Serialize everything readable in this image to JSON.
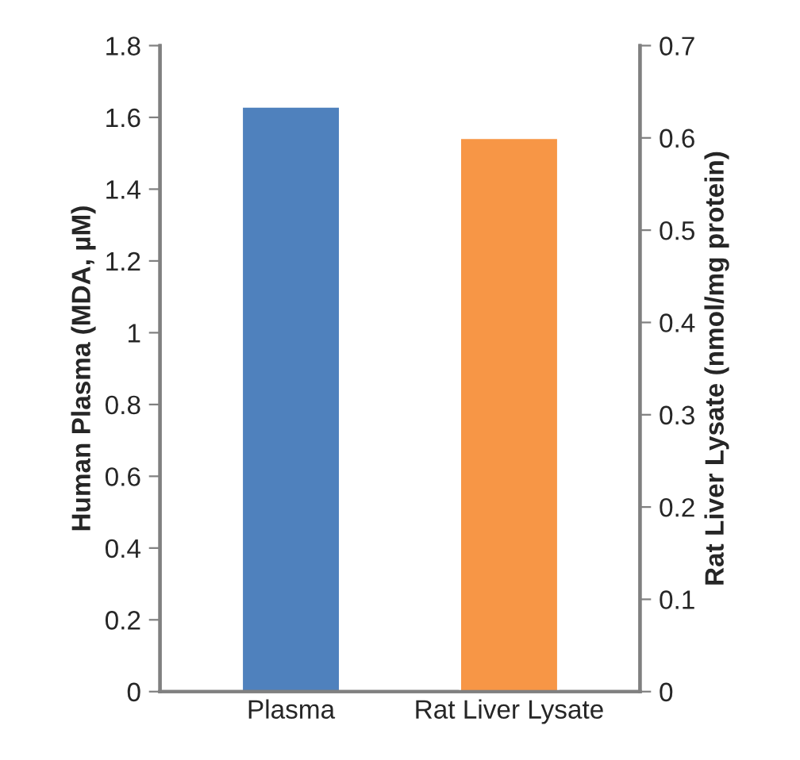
{
  "chart_data": {
    "type": "bar",
    "ylabel": "Human Plasma (MDA, µM)",
    "y2label": "Rat Liver Lysate (nmol/mg protein)",
    "categories": [
      "Plasma",
      "Rat Liver Lysate"
    ],
    "series": [
      {
        "color": "#4f81bd",
        "values": [
          1.63,
          null
        ]
      },
      {
        "color": "#f79646",
        "values": [
          null,
          0.6
        ],
        "axis": "y2"
      }
    ],
    "ylim": [
      0,
      1.8
    ],
    "yticks": [
      0,
      0.2,
      0.4,
      0.6,
      0.8,
      1,
      1.2,
      1.4,
      1.6,
      1.8
    ],
    "y2lim": [
      0,
      0.7
    ],
    "y2ticks": [
      0,
      0.1,
      0.2,
      0.3,
      0.4,
      0.5,
      0.6,
      0.7
    ],
    "grid": false,
    "legend": false
  }
}
